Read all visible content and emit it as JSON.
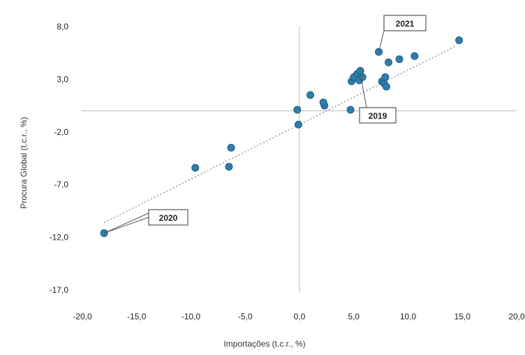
{
  "chart_data": {
    "type": "scatter",
    "title": "",
    "xlabel": "Importações (t.c.r., %)",
    "ylabel": "Procura Global (t.c.r., %)",
    "xlim": [
      -20,
      20
    ],
    "ylim": [
      -17,
      8
    ],
    "grid": false,
    "x_tick_labels": [
      "-20,0",
      "-15,0",
      "-10,0",
      "-5,0",
      "0,0",
      "5,0",
      "10,0",
      "15,0",
      "20,0"
    ],
    "y_tick_labels": [
      "8,0",
      "3,0",
      "-2,0",
      "-7,0",
      "-12,0",
      "-17,0"
    ],
    "x_ticks": [
      -20,
      -15,
      -10,
      -5,
      0,
      5,
      10,
      15,
      20
    ],
    "y_ticks": [
      8,
      3,
      -2,
      -7,
      -12,
      -17
    ],
    "trendline": {
      "style": "dotted",
      "from": [
        -18.0,
        -10.6
      ],
      "to": [
        14.5,
        6.2
      ]
    },
    "points": [
      {
        "x": -18.0,
        "y": -11.6
      },
      {
        "x": -9.6,
        "y": -5.4
      },
      {
        "x": -6.3,
        "y": -3.5
      },
      {
        "x": -6.5,
        "y": -5.3
      },
      {
        "x": -0.2,
        "y": 0.1
      },
      {
        "x": -0.1,
        "y": -1.3
      },
      {
        "x": 1.0,
        "y": 1.5
      },
      {
        "x": 2.3,
        "y": 0.5
      },
      {
        "x": 2.2,
        "y": 0.8
      },
      {
        "x": 4.7,
        "y": 0.1
      },
      {
        "x": 4.8,
        "y": 2.8
      },
      {
        "x": 5.0,
        "y": 3.2
      },
      {
        "x": 5.3,
        "y": 3.5
      },
      {
        "x": 5.5,
        "y": 2.9
      },
      {
        "x": 5.8,
        "y": 3.2
      },
      {
        "x": 5.6,
        "y": 3.8
      },
      {
        "x": 7.3,
        "y": 5.6
      },
      {
        "x": 7.6,
        "y": 2.8
      },
      {
        "x": 7.8,
        "y": 2.6
      },
      {
        "x": 8.0,
        "y": 2.3
      },
      {
        "x": 7.9,
        "y": 3.2
      },
      {
        "x": 8.2,
        "y": 4.6
      },
      {
        "x": 9.2,
        "y": 4.9
      },
      {
        "x": 10.6,
        "y": 5.2
      },
      {
        "x": 14.7,
        "y": 6.7
      }
    ],
    "annotations": [
      {
        "text": "2021",
        "x": 7.3,
        "y": 5.6
      },
      {
        "text": "2019",
        "x": 5.6,
        "y": 3.5
      },
      {
        "text": "2020",
        "x": -18.0,
        "y": -11.6
      }
    ],
    "colors": {
      "marker": "#2e7dab",
      "marker_dark": "#1f5f86",
      "axis": "#bbbbbb",
      "trendline": "#8a8a8a",
      "callout_border": "#555555"
    }
  }
}
